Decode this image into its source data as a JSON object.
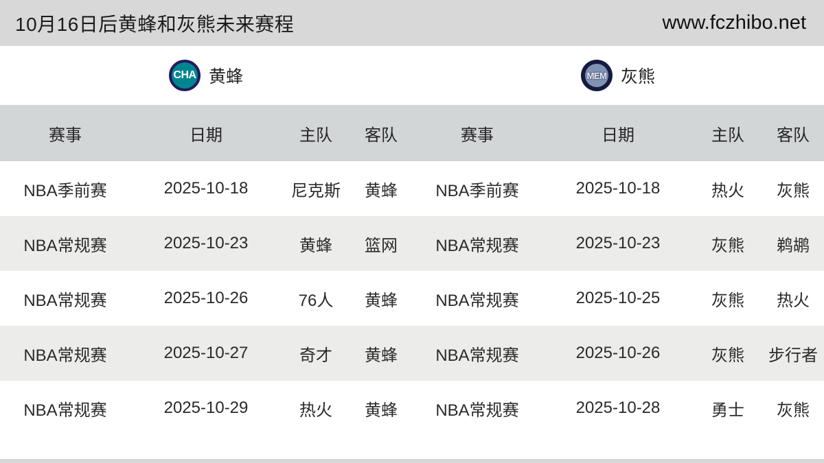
{
  "header": {
    "title": "10月16日后黄蜂和灰熊未来赛程",
    "site": "www.fczhibo.net"
  },
  "teams": [
    {
      "abbr": "CHA",
      "name": "黄蜂"
    },
    {
      "abbr": "MEM",
      "name": "灰熊"
    }
  ],
  "columns": [
    "赛事",
    "日期",
    "主队",
    "客队"
  ],
  "tables": [
    {
      "team": "黄蜂",
      "rows": [
        {
          "event": "NBA季前赛",
          "date": "2025-10-18",
          "home": "尼克斯",
          "away": "黄蜂"
        },
        {
          "event": "NBA常规赛",
          "date": "2025-10-23",
          "home": "黄蜂",
          "away": "篮网"
        },
        {
          "event": "NBA常规赛",
          "date": "2025-10-26",
          "home": "76人",
          "away": "黄蜂"
        },
        {
          "event": "NBA常规赛",
          "date": "2025-10-27",
          "home": "奇才",
          "away": "黄蜂"
        },
        {
          "event": "NBA常规赛",
          "date": "2025-10-29",
          "home": "热火",
          "away": "黄蜂"
        }
      ]
    },
    {
      "team": "灰熊",
      "rows": [
        {
          "event": "NBA季前赛",
          "date": "2025-10-18",
          "home": "热火",
          "away": "灰熊"
        },
        {
          "event": "NBA常规赛",
          "date": "2025-10-23",
          "home": "灰熊",
          "away": "鹈鹕"
        },
        {
          "event": "NBA常规赛",
          "date": "2025-10-25",
          "home": "灰熊",
          "away": "热火"
        },
        {
          "event": "NBA常规赛",
          "date": "2025-10-26",
          "home": "灰熊",
          "away": "步行者"
        },
        {
          "event": "NBA常规赛",
          "date": "2025-10-28",
          "home": "勇士",
          "away": "灰熊"
        }
      ]
    }
  ],
  "colors": {
    "bar_gray": "#d8d8d8",
    "head_gray": "#d3d6d7",
    "alt_row_gray": "#ececea",
    "cha_teal": "#00858f",
    "cha_navy": "#241a5e",
    "mem_navy": "#141b3f",
    "mem_slate": "#8193b5"
  }
}
